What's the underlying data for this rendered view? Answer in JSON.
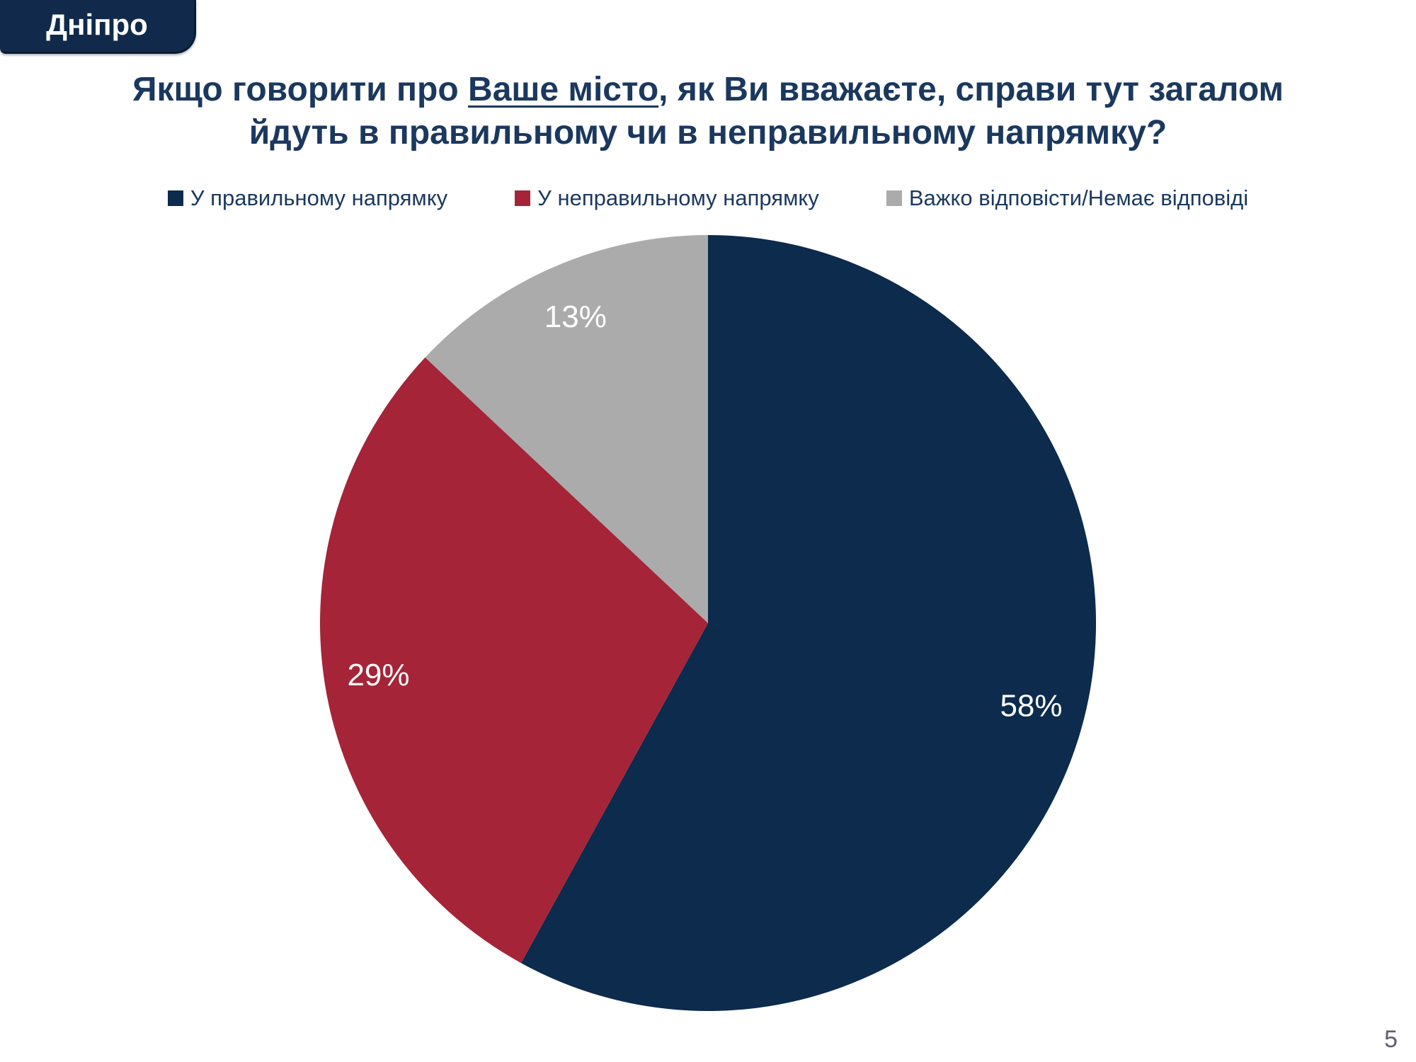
{
  "badge": {
    "city": "Дніпро"
  },
  "title": {
    "line1_prefix": "Якщо говорити про ",
    "line1_underlined": "Ваше місто",
    "line1_suffix": ", як Ви вважаєте, справи тут загалом",
    "line2": "йдуть в правильному чи в неправильному напрямку?"
  },
  "page_number": "5",
  "colors": {
    "navy": "#0C2B4D",
    "red": "#A52438",
    "gray": "#ABABAB",
    "title_text": "#1B385E",
    "label_text": "#FFFFFF"
  },
  "chart_data": {
    "type": "pie",
    "title": "Якщо говорити про Ваше місто, як Ви вважаєте, справи тут загалом йдуть в правильному чи в неправильному напрямку?",
    "labels": [
      "У правильному напрямку",
      "У неправильному напрямку",
      "Важко відповісти/Немає відповіді"
    ],
    "values": [
      58,
      29,
      13
    ],
    "value_labels": [
      "58%",
      "29%",
      "13%"
    ],
    "colors": [
      "#0C2B4D",
      "#A52438",
      "#ABABAB"
    ],
    "start_angle_deg": 0,
    "direction": "clockwise",
    "legend_position": "top",
    "label_radius_factor": 0.86
  }
}
